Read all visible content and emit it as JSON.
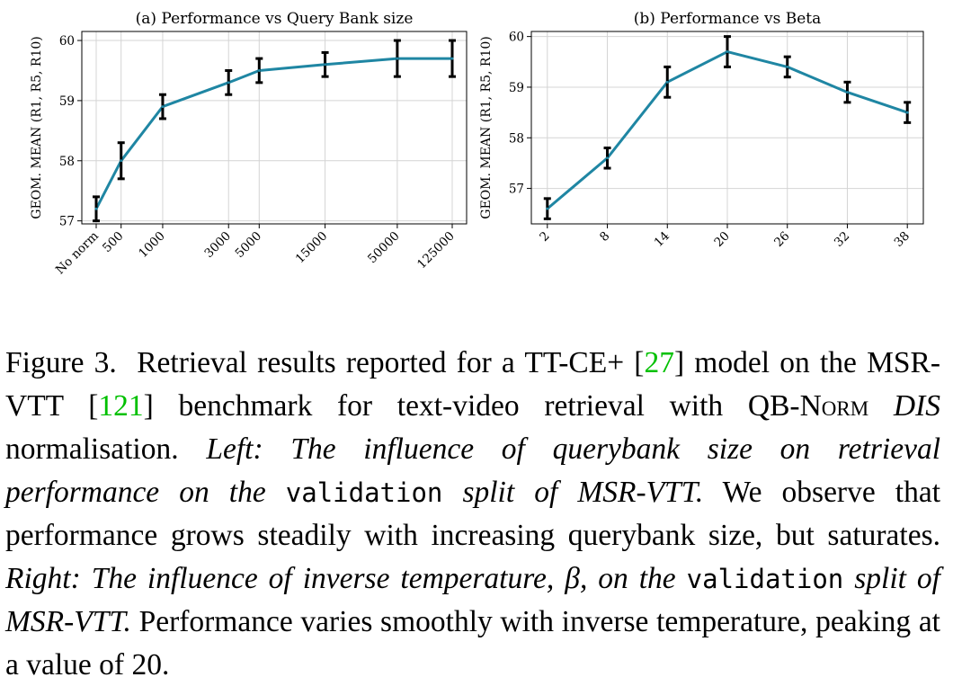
{
  "figure": {
    "caption": {
      "fig_label": "Figure 3.",
      "p1": "Retrieval results reported for a TT-CE+ [",
      "ref1": "27",
      "p2": "] model on the MSR-VTT [",
      "ref2": "121",
      "p3": "] benchmark for text-video retrieval with ",
      "qb": "QB-Norm",
      "space1": " ",
      "dis": "DIS",
      "p4": " normalisation. ",
      "left_a": "Left: The influence of querybank size on retrieval performance on the ",
      "split1": "validation",
      "left_b": " split of MSR-VTT.",
      "p5": " We observe that performance grows steadily with increasing querybank size, but saturates. ",
      "right_a": "Right: The influence of inverse temperature, ",
      "beta": "β",
      "right_b": ", on the ",
      "split2": "validation",
      "right_c": " split of MSR-VTT.",
      "p6": " Performance varies smoothly with inverse temperature, peaking at a value of 20."
    }
  },
  "chart_data": [
    {
      "type": "line",
      "title": "(a) Performance vs Query Bank size",
      "xlabel": "",
      "ylabel": "GEOM. MEAN (R1, R5, R10)",
      "categories": [
        "No norm",
        "500",
        "1000",
        "3000",
        "5000",
        "15000",
        "50000",
        "125000"
      ],
      "x_scale": "log",
      "x_positions": [
        330,
        500,
        1000,
        3000,
        5000,
        15000,
        50000,
        125000
      ],
      "values": [
        57.2,
        58.0,
        58.9,
        59.3,
        59.5,
        59.6,
        59.7,
        59.7
      ],
      "error": [
        0.2,
        0.3,
        0.2,
        0.2,
        0.2,
        0.2,
        0.3,
        0.3
      ],
      "yticks": [
        57,
        58,
        59,
        60
      ],
      "ylim": [
        56.95,
        60.15
      ],
      "grid": true,
      "color": "#1f86a3"
    },
    {
      "type": "line",
      "title": "(b) Performance vs Beta",
      "xlabel": "",
      "ylabel": "GEOM. MEAN (R1, R5, R10)",
      "categories": [
        "2",
        "8",
        "14",
        "20",
        "26",
        "32",
        "38"
      ],
      "x": [
        2,
        8,
        14,
        20,
        26,
        32,
        38
      ],
      "values": [
        56.6,
        57.6,
        59.1,
        59.7,
        59.4,
        58.9,
        58.5
      ],
      "error": [
        0.2,
        0.2,
        0.3,
        0.3,
        0.2,
        0.2,
        0.2
      ],
      "yticks": [
        57,
        58,
        59,
        60
      ],
      "ylim": [
        56.3,
        60.1
      ],
      "xlim": [
        0.4,
        39.6
      ],
      "grid": true,
      "color": "#1f86a3"
    }
  ]
}
